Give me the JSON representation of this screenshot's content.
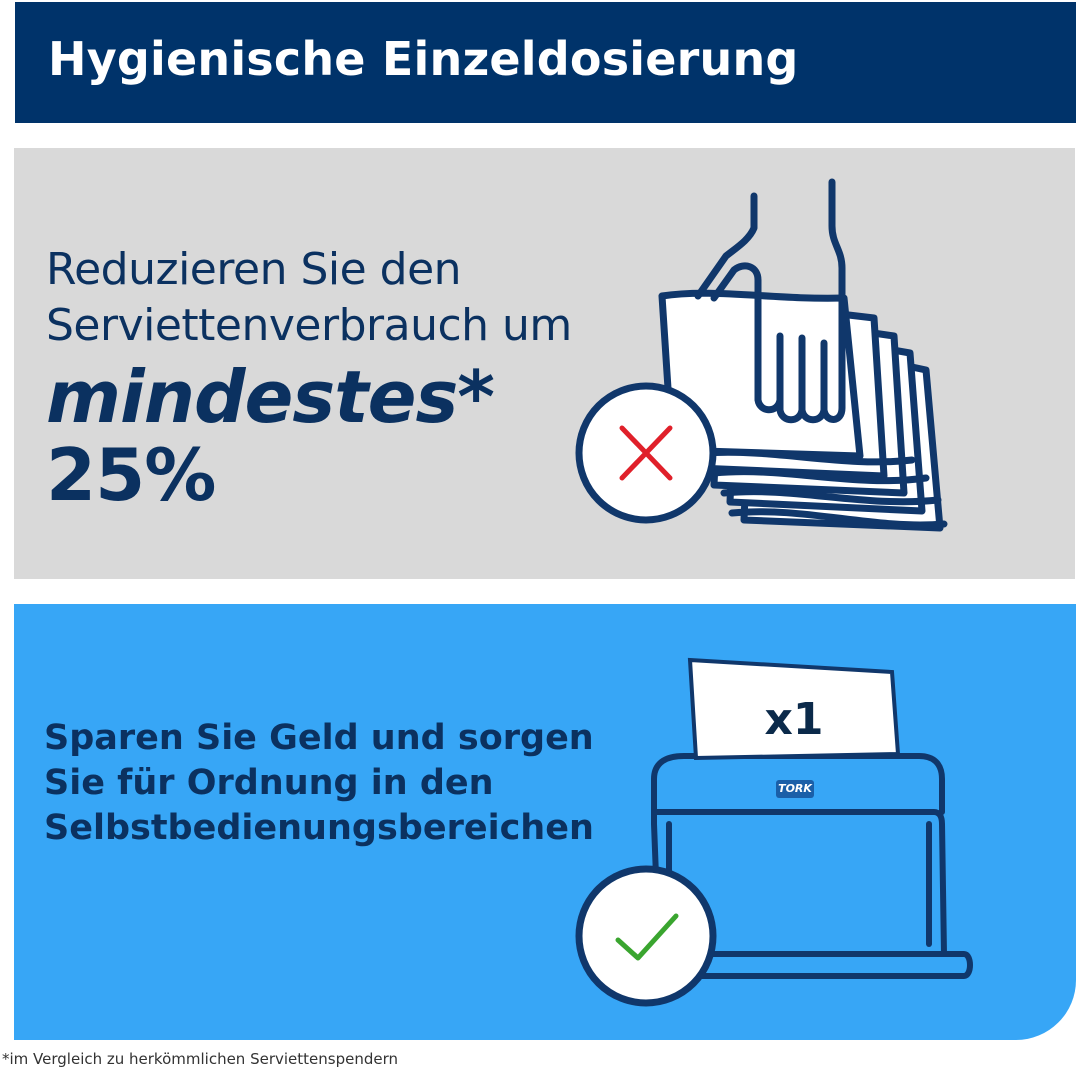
{
  "header": {
    "title": "Hygienische Einzeldosierung"
  },
  "gray_panel": {
    "line1": "Reduzieren Sie den",
    "line2": "Serviettenverbrauch um",
    "emphasis": "mindestes*",
    "percent": "25%",
    "status_icon": "cross-icon",
    "illustration": "hand-pulling-napkin-stack"
  },
  "blue_panel": {
    "line1": "Sparen Sie Geld und sorgen",
    "line2": "Sie für Ordnung in den",
    "line3": "Selbstbedienungsbereichen",
    "napkin_label": "x1",
    "brand": "TORK",
    "status_icon": "check-icon",
    "illustration": "napkin-dispenser"
  },
  "footnote": "*im Vergleich zu herkömmlichen Serviettenspendern",
  "colors": {
    "header_bg": "#00336a",
    "text_navy": "#0b3160",
    "gray_bg": "#d9d9d9",
    "blue_bg": "#37a6f6",
    "cross": "#e0202a",
    "check": "#3aa52f"
  }
}
